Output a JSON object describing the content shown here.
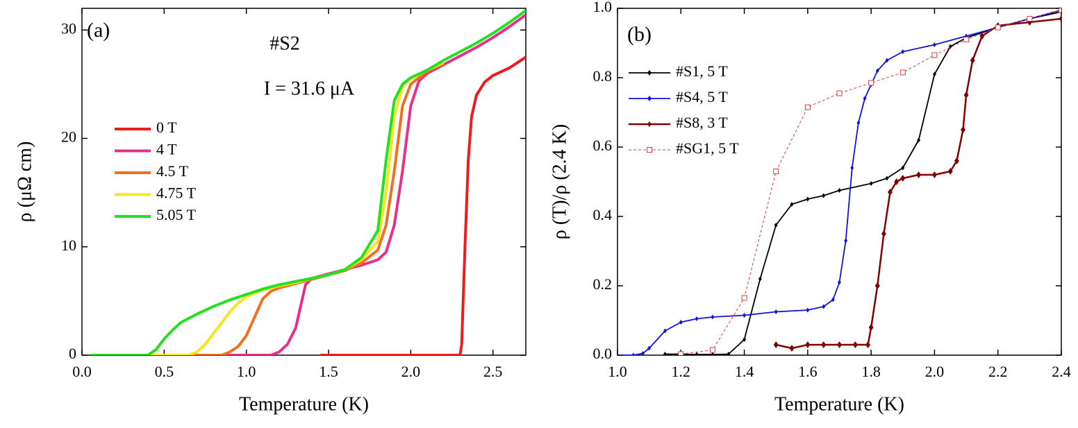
{
  "chart_data": [
    {
      "type": "line",
      "panel_label": "(a)",
      "annotations": [
        "#S2",
        "I = 31.6 μA"
      ],
      "xlabel": "Temperature (K)",
      "ylabel": "ρ (μΩ cm)",
      "xlim": [
        0,
        2.7
      ],
      "ylim": [
        0,
        32
      ],
      "xticks": [
        {
          "value": 0,
          "label": "0.0"
        },
        0.5,
        {
          "value": 1,
          "label": "1.0"
        },
        1.5,
        {
          "value": 2,
          "label": "2.0"
        },
        2.5
      ],
      "yticks": [
        0,
        10,
        20,
        30
      ],
      "legend": "center left",
      "series": [
        {
          "name": "0 T",
          "color": "#ee1c1c",
          "x": [
            1.45,
            2.0,
            2.3,
            2.31,
            2.33,
            2.35,
            2.37,
            2.4,
            2.45,
            2.5,
            2.6,
            2.7
          ],
          "values": [
            0,
            0,
            0,
            1,
            10,
            18,
            22,
            24,
            25.2,
            25.8,
            26.5,
            27.5
          ]
        },
        {
          "name": "4 T",
          "color": "#e8308a",
          "x": [
            0.05,
            1.15,
            1.2,
            1.25,
            1.3,
            1.33,
            1.36,
            1.4,
            1.5,
            1.6,
            1.7,
            1.8,
            1.85,
            1.9,
            1.95,
            2.0,
            2.05,
            2.1,
            2.2,
            2.3,
            2.4,
            2.5,
            2.6,
            2.7
          ],
          "values": [
            0,
            0,
            0.3,
            1,
            2.5,
            4.5,
            6.5,
            7.1,
            7.5,
            7.9,
            8.3,
            8.8,
            9.5,
            12,
            17,
            23,
            25.3,
            26,
            26.8,
            27.6,
            28.4,
            29.3,
            30.3,
            31.4
          ]
        },
        {
          "name": "4.5 T",
          "color": "#f07020",
          "x": [
            0.05,
            0.85,
            0.9,
            0.95,
            1.0,
            1.05,
            1.1,
            1.15,
            1.2,
            1.3,
            1.4,
            1.5,
            1.6,
            1.7,
            1.8,
            1.85,
            1.9,
            1.95,
            2.0,
            2.1,
            2.2
          ],
          "values": [
            0,
            0,
            0.3,
            0.8,
            1.8,
            3.5,
            5.2,
            5.9,
            6.2,
            6.6,
            7,
            7.4,
            7.8,
            8.5,
            9.7,
            12,
            17,
            23,
            25,
            26.2,
            26.9
          ]
        },
        {
          "name": "4.75 T",
          "color": "#f5e61e",
          "x": [
            0.05,
            0.65,
            0.7,
            0.75,
            0.8,
            0.85,
            0.9,
            0.95,
            1.0,
            1.1,
            1.2,
            1.3,
            1.4,
            1.5,
            1.6,
            1.7,
            1.8,
            1.85,
            1.9,
            1.95,
            2.0,
            2.1,
            2.2
          ],
          "values": [
            0,
            0,
            0.3,
            1,
            2,
            3,
            4,
            4.8,
            5.4,
            6,
            6.4,
            6.7,
            7.1,
            7.4,
            7.9,
            8.8,
            10.5,
            15,
            22,
            24.8,
            25.5,
            26.3,
            27
          ]
        },
        {
          "name": "5.05 T",
          "color": "#22e022",
          "x": [
            0.05,
            0.4,
            0.45,
            0.5,
            0.55,
            0.6,
            0.7,
            0.8,
            0.9,
            1.0,
            1.1,
            1.2,
            1.3,
            1.4,
            1.5,
            1.6,
            1.7,
            1.8,
            1.85,
            1.9,
            1.95,
            2.0,
            2.1,
            2.2,
            2.3,
            2.4,
            2.5,
            2.6,
            2.7
          ],
          "values": [
            0,
            0,
            0.5,
            1.5,
            2.3,
            3,
            3.8,
            4.5,
            5.1,
            5.6,
            6.1,
            6.5,
            6.8,
            7.1,
            7.4,
            7.9,
            9,
            11.5,
            18,
            23.5,
            25,
            25.6,
            26.3,
            27.2,
            28,
            28.8,
            29.7,
            30.7,
            31.8
          ]
        }
      ]
    },
    {
      "type": "line",
      "panel_label": "(b)",
      "xlabel": "Temperature (K)",
      "ylabel": "ρ (T)/ρ (2.4 K)",
      "xlim": [
        1.0,
        2.4
      ],
      "ylim": [
        0,
        1
      ],
      "xticks": [
        {
          "value": 1,
          "label": "1.0"
        },
        1.2,
        1.4,
        1.6,
        1.8,
        {
          "value": 2,
          "label": "2.0"
        },
        2.2,
        2.4
      ],
      "yticks": [
        {
          "value": 0,
          "label": "0.0"
        },
        0.2,
        0.4,
        0.6,
        0.8,
        {
          "value": 1,
          "label": "1.0"
        }
      ],
      "legend": "upper left",
      "series": [
        {
          "name": "#S1, 5 T",
          "color": "#000000",
          "marker": "diamond",
          "x": [
            1.15,
            1.2,
            1.25,
            1.3,
            1.35,
            1.4,
            1.45,
            1.5,
            1.55,
            1.6,
            1.65,
            1.7,
            1.8,
            1.85,
            1.9,
            1.95,
            2.0,
            2.05,
            2.1,
            2.2,
            2.3,
            2.4
          ],
          "values": [
            0.003,
            0.003,
            0.002,
            0.002,
            0.003,
            0.045,
            0.22,
            0.375,
            0.435,
            0.45,
            0.46,
            0.475,
            0.495,
            0.51,
            0.54,
            0.62,
            0.81,
            0.89,
            0.915,
            0.945,
            0.97,
            0.99
          ]
        },
        {
          "name": "#S4, 5 T",
          "color": "#1010e0",
          "marker": "diamond",
          "x": [
            1.0,
            1.05,
            1.08,
            1.1,
            1.15,
            1.2,
            1.25,
            1.3,
            1.4,
            1.5,
            1.6,
            1.65,
            1.68,
            1.7,
            1.72,
            1.74,
            1.76,
            1.78,
            1.8,
            1.82,
            1.85,
            1.9,
            2.0,
            2.1,
            2.2,
            2.3,
            2.4
          ],
          "values": [
            0,
            0,
            0.005,
            0.02,
            0.07,
            0.095,
            0.105,
            0.11,
            0.115,
            0.125,
            0.13,
            0.14,
            0.16,
            0.21,
            0.33,
            0.54,
            0.67,
            0.74,
            0.78,
            0.82,
            0.85,
            0.875,
            0.895,
            0.92,
            0.945,
            0.97,
            0.995
          ]
        },
        {
          "name": "#S8, 3 T",
          "color": "#800000",
          "marker": "diamond",
          "thick": true,
          "x": [
            1.5,
            1.55,
            1.6,
            1.65,
            1.7,
            1.75,
            1.79,
            1.8,
            1.82,
            1.84,
            1.86,
            1.88,
            1.9,
            1.95,
            2.0,
            2.05,
            2.07,
            2.09,
            2.1,
            2.12,
            2.15,
            2.2,
            2.3,
            2.4
          ],
          "values": [
            0.03,
            0.02,
            0.03,
            0.03,
            0.03,
            0.03,
            0.03,
            0.08,
            0.2,
            0.35,
            0.47,
            0.5,
            0.51,
            0.52,
            0.52,
            0.53,
            0.56,
            0.65,
            0.75,
            0.85,
            0.92,
            0.95,
            0.96,
            0.97
          ]
        },
        {
          "name": "#SG1, 5 T",
          "color": "#d04040",
          "marker": "square",
          "dashed": true,
          "x": [
            1.2,
            1.3,
            1.4,
            1.5,
            1.6,
            1.7,
            1.8,
            1.9,
            2.0,
            2.1,
            2.2,
            2.3,
            2.4
          ],
          "values": [
            0.003,
            0.015,
            0.165,
            0.53,
            0.715,
            0.755,
            0.785,
            0.815,
            0.865,
            0.91,
            0.945,
            0.97,
            0.995
          ]
        }
      ]
    }
  ]
}
